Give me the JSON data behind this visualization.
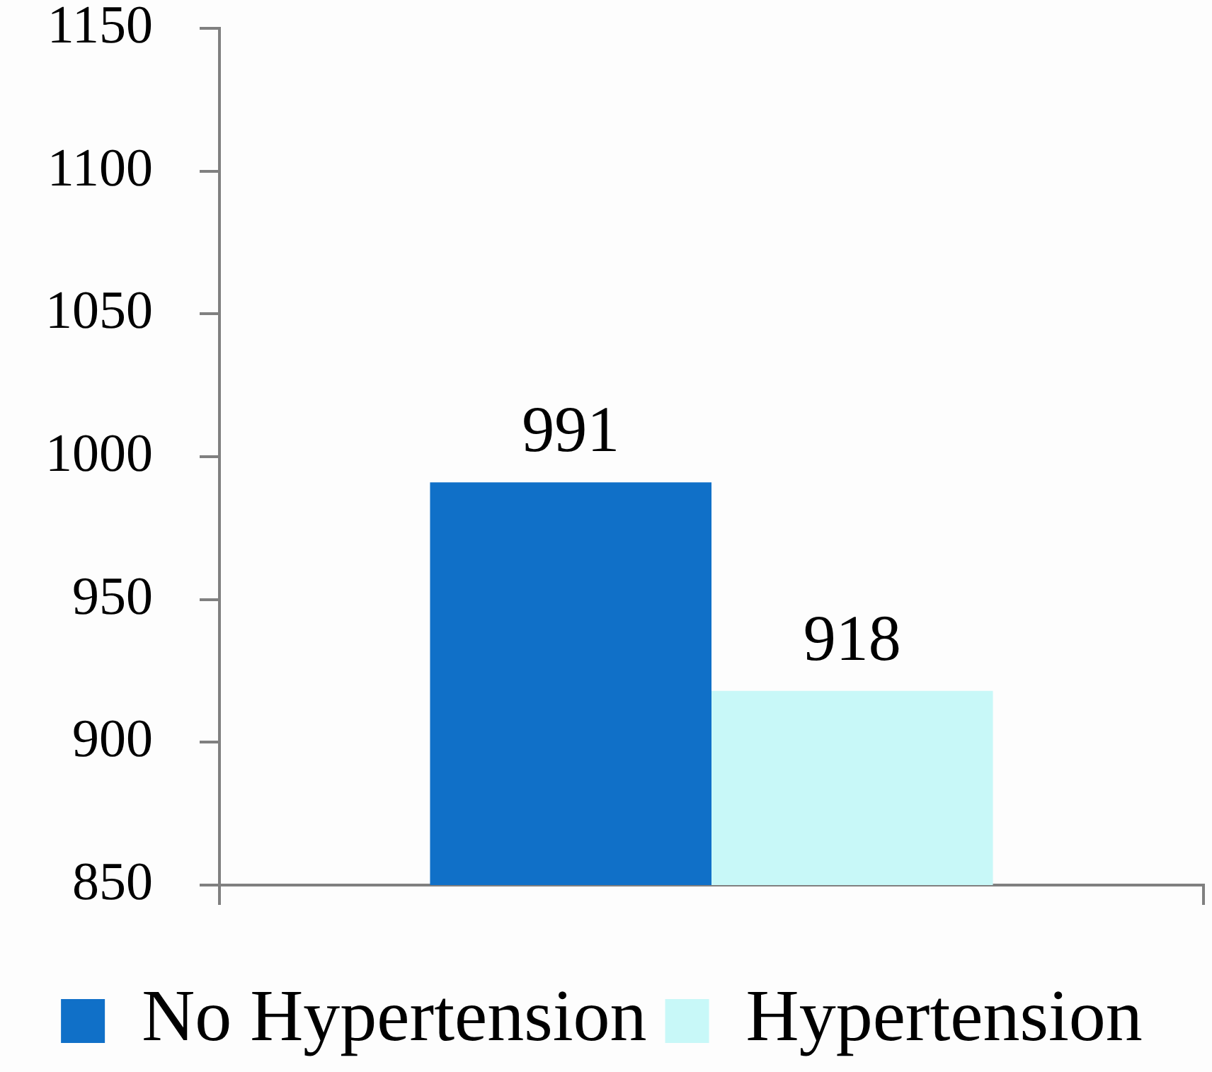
{
  "chart_data": {
    "type": "bar",
    "categories": [
      null
    ],
    "series": [
      {
        "name": "No Hypertension",
        "color": "#1070c8",
        "values": [
          991
        ]
      },
      {
        "name": "Hypertension",
        "color": "#c8f8f8",
        "values": [
          918
        ]
      }
    ],
    "ylim": [
      850,
      1150
    ],
    "yticks": [
      850,
      900,
      950,
      1000,
      1050,
      1100,
      1150
    ],
    "grid": false,
    "legend": "bottom",
    "data_labels": true
  }
}
